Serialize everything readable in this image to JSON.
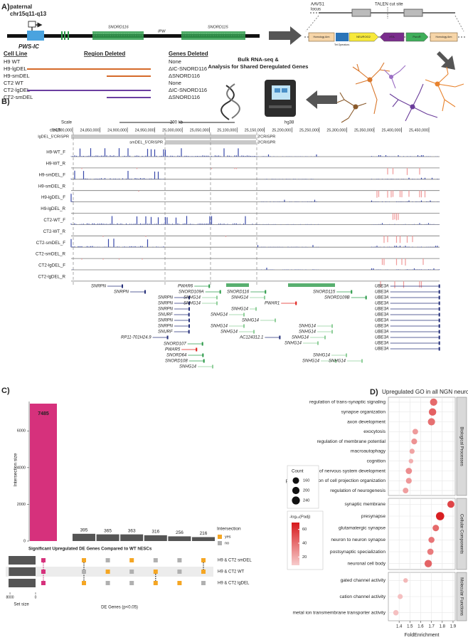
{
  "panel_a": {
    "label": "A)",
    "locus_title": [
      "paternal",
      "chr15q11-q13"
    ],
    "pws_ic": "PWS-IC",
    "gene_labels": [
      "SNORD116",
      "IPW",
      "SNORD115"
    ],
    "table": {
      "headers": [
        "Cell Line",
        "Region Deleted",
        "Genes Deleted"
      ],
      "rows": [
        {
          "cell_line": "H9 WT",
          "genes_deleted": "None"
        },
        {
          "cell_line": "H9-lgDEL",
          "genes_deleted": "ΔIC-SNORD116"
        },
        {
          "cell_line": "H9-smDEL",
          "genes_deleted": "ΔSNORD116"
        },
        {
          "cell_line": "CT2 WT",
          "genes_deleted": "None"
        },
        {
          "cell_line": "CT2-lgDEL",
          "genes_deleted": "ΔIC-SNORD116"
        },
        {
          "cell_line": "CT2-smDEL",
          "genes_deleted": "ΔSNORD116"
        }
      ]
    },
    "construct": {
      "locus": [
        "AAVS1",
        "locus"
      ],
      "cut_site": "TALEN cut site",
      "parts": [
        "Homology Arm",
        "NEUROG2",
        "rtTA",
        "PuroR",
        "Homology Arm"
      ],
      "operators": "Tet Operators"
    },
    "workflow": [
      "Bulk RNA-seq &",
      "Analysis for Shared Deregulated Genes"
    ]
  },
  "panel_b": {
    "label": "B)",
    "scale": "Scale",
    "scale_bar": "200 kb",
    "assembly": "hg38",
    "chrom": "chr15:",
    "coords": [
      {
        "value": 24800000,
        "label": "24,800,000"
      },
      {
        "value": 24850000,
        "label": "24,850,000"
      },
      {
        "value": 24900000,
        "label": "24,900,000"
      },
      {
        "value": 24950000,
        "label": "24,950,000"
      },
      {
        "value": 25000000,
        "label": "25,000,000"
      },
      {
        "value": 25050000,
        "label": "25,050,000"
      },
      {
        "value": 25100000,
        "label": "25,100,000"
      },
      {
        "value": 25150000,
        "label": "25,150,000"
      },
      {
        "value": 25200000,
        "label": "25,200,000"
      },
      {
        "value": 25250000,
        "label": "25,250,000"
      },
      {
        "value": 25300000,
        "label": "25,300,000"
      },
      {
        "value": 25350000,
        "label": "25,350,000"
      },
      {
        "value": 25400000,
        "label": "25,400,000"
      },
      {
        "value": 25450000,
        "label": "25,450,000"
      }
    ],
    "crispr": [
      "lgDEL_5'CRISPR",
      "3'CRISPR",
      "smDEL_5'CRISPR",
      "3'CRISPR"
    ],
    "tracks": [
      {
        "name": "H9-WT_F",
        "color": "#3949ab"
      },
      {
        "name": "H9-WT_R",
        "color": "#d9342b"
      },
      {
        "name": "H9-smDEL_F",
        "color": "#3949ab"
      },
      {
        "name": "H9-smDEL_R",
        "color": "#d9342b"
      },
      {
        "name": "H9-lgDEL_F",
        "color": "#3949ab"
      },
      {
        "name": "H9-lgDEL_R",
        "color": "#d9342b"
      },
      {
        "name": "CT2-WT_F",
        "color": "#3949ab"
      },
      {
        "name": "CT2-WT_R",
        "color": "#d9342b"
      },
      {
        "name": "CT2-smDEL_F",
        "color": "#3949ab"
      },
      {
        "name": "CT2-smDEL_R",
        "color": "#d9342b"
      },
      {
        "name": "CT2-lgDEL_F",
        "color": "#3949ab"
      },
      {
        "name": "CT2-lgDEL_R",
        "color": "#d9342b"
      }
    ],
    "genes": [
      {
        "label": "SNRPN",
        "color": "#26307a"
      },
      {
        "label": "SNRPN",
        "color": "#26307a"
      },
      {
        "label": "SNRPN",
        "color": "#26307a"
      },
      {
        "label": "SNRPN",
        "color": "#26307a"
      },
      {
        "label": "SNRPN",
        "color": "#26307a"
      },
      {
        "label": "SNURF",
        "color": "#26307a"
      },
      {
        "label": "SNRPN",
        "color": "#26307a"
      },
      {
        "label": "SNRPN",
        "color": "#26307a"
      },
      {
        "label": "SNURF",
        "color": "#26307a"
      },
      {
        "label": "RP11-701H24.9",
        "color": "#26307a"
      },
      {
        "label": "SNORD107",
        "color": "#2e9b4b"
      },
      {
        "label": "PWAR5",
        "color": "#e0201b"
      },
      {
        "label": "SNORD64",
        "color": "#2e9b4b"
      },
      {
        "label": "SNORD108",
        "color": "#2e9b4b"
      },
      {
        "label": "SNHG14",
        "color": "#8fcf9a"
      },
      {
        "label": "PWAR6",
        "color": "#2e9b4b"
      },
      {
        "label": "SNORD109A",
        "color": "#2e9b4b"
      },
      {
        "label": "SNORD116",
        "color": "#2e9b4b"
      },
      {
        "label": "SNHG14",
        "color": "#8fcf9a"
      },
      {
        "label": "SNHG14",
        "color": "#8fcf9a"
      },
      {
        "label": "SNHG14",
        "color": "#8fcf9a"
      },
      {
        "label": "SNHG14",
        "color": "#8fcf9a"
      },
      {
        "label": "PWAR1",
        "color": "#e0201b"
      },
      {
        "label": "SNHG14",
        "color": "#8fcf9a"
      },
      {
        "label": "SNHG14",
        "color": "#8fcf9a"
      },
      {
        "label": "SNHG14",
        "color": "#8fcf9a"
      },
      {
        "label": "AC124312.1",
        "color": "#26307a"
      },
      {
        "label": "SNHG14",
        "color": "#8fcf9a"
      },
      {
        "label": "SNORD115",
        "color": "#2e9b4b"
      },
      {
        "label": "SNORD109B",
        "color": "#2e9b4b"
      },
      {
        "label": "SNHG14",
        "color": "#8fcf9a"
      },
      {
        "label": "SNHG14",
        "color": "#8fcf9a"
      },
      {
        "label": "SNHG14",
        "color": "#8fcf9a"
      },
      {
        "label": "SNHG14",
        "color": "#8fcf9a"
      },
      {
        "label": "SNHG14",
        "color": "#8fcf9a"
      },
      {
        "label": "SNHG14",
        "color": "#8fcf9a"
      },
      {
        "label": "SNHG14",
        "color": "#8fcf9a"
      },
      {
        "label": "UBE3A",
        "color": "#26307a"
      },
      {
        "label": "UBE3A",
        "color": "#26307a"
      },
      {
        "label": "UBE3A",
        "color": "#26307a"
      },
      {
        "label": "UBE3A",
        "color": "#26307a"
      },
      {
        "label": "UBE3A",
        "color": "#26307a"
      },
      {
        "label": "UBE3A",
        "color": "#26307a"
      },
      {
        "label": "UBE3A",
        "color": "#26307a"
      },
      {
        "label": "UBE3A",
        "color": "#26307a"
      },
      {
        "label": "UBE3A",
        "color": "#26307a"
      },
      {
        "label": "UBE3A",
        "color": "#26307a"
      },
      {
        "label": "UBE3A",
        "color": "#26307a"
      },
      {
        "label": "UBE3A",
        "color": "#26307a"
      }
    ]
  },
  "chart_data": [
    {
      "type": "upset",
      "label": "C)",
      "ylabel": "Intersection size",
      "ylim": [
        0,
        7600
      ],
      "yticks": [
        0,
        2000,
        4000,
        6000
      ],
      "values": [
        7485,
        395,
        365,
        363,
        316,
        256,
        216
      ],
      "colors": [
        "#d6317c",
        "#555555",
        "#555555",
        "#555555",
        "#555555",
        "#555555",
        "#555555"
      ],
      "subtitle": "Significant Upregulated DE Genes Compared to WT hESCs",
      "sets": [
        "H9 & CT2 smDEL",
        "H9 & CT2 WT",
        "H9 & CT2 lgDEL"
      ],
      "membership": [
        [
          true,
          true,
          true
        ],
        [
          true,
          false,
          true
        ],
        [
          false,
          true,
          false
        ],
        [
          true,
          false,
          false
        ],
        [
          false,
          true,
          true
        ],
        [
          false,
          false,
          true
        ],
        [
          true,
          true,
          false
        ]
      ],
      "set_sizes": [
        8459,
        8382,
        8452
      ],
      "set_size_xlim": [
        8900,
        0
      ],
      "set_size_xticks": [
        8000,
        0
      ],
      "set_size_label": "Set size",
      "xlabel": "DE Genes (p<0.05)",
      "legend": {
        "title": "Intersection",
        "items": [
          {
            "name": "yes",
            "color": "#f5a623"
          },
          {
            "name": "no",
            "color": "#b0b0b0"
          }
        ]
      }
    },
    {
      "type": "dot",
      "label": "D)",
      "title": "Upregulated GO in all NGN neurons vs ESCs",
      "xlabel": "FoldEnrichment",
      "xlim": [
        1.3,
        1.92
      ],
      "xticks": [
        1.4,
        1.5,
        1.6,
        1.7,
        1.8,
        1.9
      ],
      "facets": [
        {
          "name": "Biological Processes",
          "categories": [
            "regulation of trans-synaptic signaling",
            "synapse organization",
            "axon development",
            "exocytosis",
            "regulation of membrane potential",
            "macroautophagy",
            "cognition",
            "regulation of nervous system development",
            "positive regulation of cell projection organization",
            "regulation of neurogenesis"
          ],
          "values": [
            1.72,
            1.71,
            1.7,
            1.55,
            1.54,
            1.52,
            1.51,
            1.49,
            1.49,
            1.46
          ],
          "count": [
            200,
            210,
            200,
            120,
            130,
            100,
            80,
            150,
            130,
            120
          ],
          "padj": [
            42,
            45,
            40,
            25,
            28,
            22,
            18,
            30,
            26,
            24
          ]
        },
        {
          "name": "Cellular Components",
          "categories": [
            "synaptic membrane",
            "presynapse",
            "glutamatergic synapse",
            "neuron to neuron synapse",
            "postsynaptic specialization",
            "neuronal cell body"
          ],
          "values": [
            1.88,
            1.78,
            1.74,
            1.7,
            1.69,
            1.67
          ],
          "count": [
            190,
            260,
            160,
            140,
            150,
            210
          ],
          "padj": [
            55,
            68,
            42,
            38,
            36,
            44
          ]
        },
        {
          "name": "Molecular Functions",
          "categories": [
            "gated channel activity",
            "cation channel activity",
            "metal ion transmembrane transporter activity"
          ],
          "values": [
            1.46,
            1.41,
            1.37
          ],
          "count": [
            80,
            100,
            110
          ],
          "padj": [
            15,
            12,
            12
          ]
        }
      ],
      "size_legend": {
        "title": "Count",
        "values": [
          160,
          200,
          240
        ]
      },
      "color_legend": {
        "title": "-log₁₀(Padj)",
        "ticks": [
          20,
          40,
          60
        ],
        "clim": [
          8,
          70
        ],
        "low": "#f7cccc",
        "high": "#d7191c"
      }
    }
  ]
}
